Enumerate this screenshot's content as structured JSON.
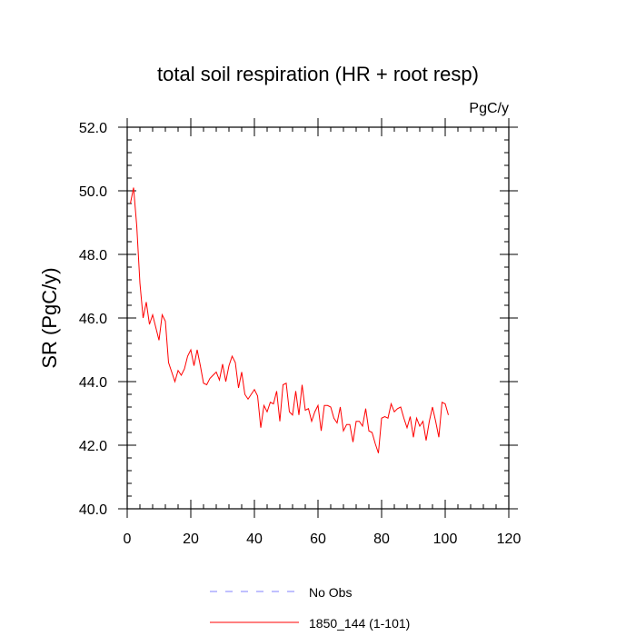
{
  "chart_data": {
    "type": "line",
    "title": "total soil respiration (HR + root resp)",
    "units_label": "PgC/y",
    "xlabel": "",
    "ylabel": "SR  (PgC/y)",
    "xlim": [
      0,
      120
    ],
    "ylim": [
      40,
      52
    ],
    "x_ticks": [
      0,
      20,
      40,
      60,
      80,
      100,
      120
    ],
    "x_tick_labels": [
      "0",
      "20",
      "40",
      "60",
      "80",
      "100",
      "120"
    ],
    "y_ticks": [
      40,
      42,
      44,
      46,
      48,
      50,
      52
    ],
    "y_tick_labels": [
      "40.0",
      "42.0",
      "44.0",
      "46.0",
      "48.0",
      "50.0",
      "52.0"
    ],
    "grid": false,
    "legend_position": "bottom",
    "series": [
      {
        "name": "No Obs",
        "color": "#8080ff",
        "dash": "dashed",
        "x": [],
        "values": []
      },
      {
        "name": "1850_144 (1-101)",
        "color": "#ff0000",
        "dash": "solid",
        "x": [
          1,
          2,
          3,
          4,
          5,
          6,
          7,
          8,
          9,
          10,
          11,
          12,
          13,
          14,
          15,
          16,
          17,
          18,
          19,
          20,
          21,
          22,
          23,
          24,
          25,
          26,
          27,
          28,
          29,
          30,
          31,
          32,
          33,
          34,
          35,
          36,
          37,
          38,
          39,
          40,
          41,
          42,
          43,
          44,
          45,
          46,
          47,
          48,
          49,
          50,
          51,
          52,
          53,
          54,
          55,
          56,
          57,
          58,
          59,
          60,
          61,
          62,
          63,
          64,
          65,
          66,
          67,
          68,
          69,
          70,
          71,
          72,
          73,
          74,
          75,
          76,
          77,
          78,
          79,
          80,
          81,
          82,
          83,
          84,
          85,
          86,
          87,
          88,
          89,
          90,
          91,
          92,
          93,
          94,
          95,
          96,
          97,
          98,
          99,
          100,
          101
        ],
        "values": [
          49.6,
          50.1,
          48.9,
          47.1,
          46.0,
          46.5,
          45.8,
          46.1,
          45.7,
          45.3,
          46.1,
          45.9,
          44.6,
          44.3,
          44.0,
          44.35,
          44.2,
          44.4,
          44.8,
          45.0,
          44.5,
          45.0,
          44.5,
          43.95,
          43.9,
          44.1,
          44.2,
          44.3,
          44.05,
          44.55,
          44.0,
          44.5,
          44.8,
          44.6,
          43.8,
          44.3,
          43.6,
          43.45,
          43.6,
          43.75,
          43.55,
          42.55,
          43.25,
          43.05,
          43.35,
          43.3,
          43.7,
          42.75,
          43.9,
          43.95,
          43.05,
          42.95,
          43.7,
          42.95,
          43.9,
          43.1,
          43.15,
          42.75,
          43.05,
          43.25,
          42.45,
          43.25,
          43.25,
          43.2,
          42.85,
          42.7,
          43.2,
          42.45,
          42.65,
          42.65,
          42.1,
          42.75,
          42.75,
          42.6,
          43.15,
          42.45,
          42.4,
          42.05,
          41.75,
          42.85,
          42.9,
          42.85,
          43.3,
          43.05,
          43.15,
          43.2,
          42.85,
          42.55,
          42.9,
          42.25,
          42.85,
          42.6,
          42.75,
          42.15,
          42.75,
          43.2,
          42.75,
          42.25,
          43.35,
          43.3,
          42.95
        ]
      }
    ]
  }
}
